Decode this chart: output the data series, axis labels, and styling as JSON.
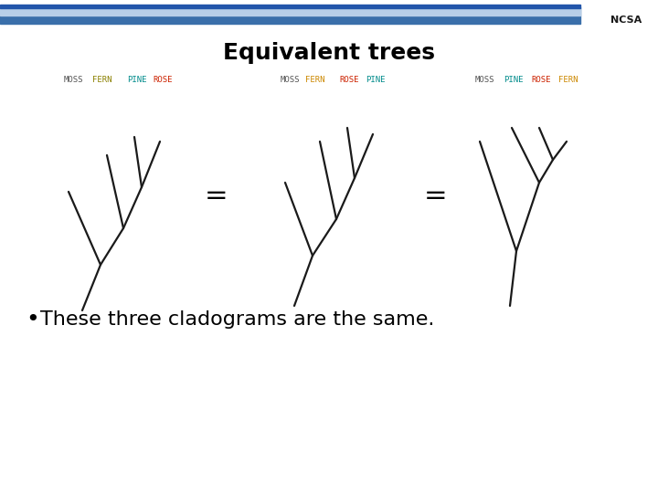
{
  "title": "Equivalent trees",
  "title_fontsize": 18,
  "title_fontweight": "bold",
  "background_color": "#ffffff",
  "bullet_text": "These three cladograms are the same.",
  "bullet_fontsize": 16,
  "header_bar_color_dark": "#3a6faa",
  "header_bar_color_light": "#b8cfe8",
  "tree1_labels": [
    "MOSS",
    "FERN",
    "PINE",
    "ROSE"
  ],
  "tree1_colors": [
    "#555555",
    "#8b8000",
    "#008b8b",
    "#cc2200"
  ],
  "tree2_labels": [
    "MOSS",
    "FERN",
    "ROSE",
    "PINE"
  ],
  "tree2_colors": [
    "#555555",
    "#cc8800",
    "#cc2200",
    "#008b8b"
  ],
  "tree3_labels": [
    "MOSS",
    "PINE",
    "ROSE",
    "FERN"
  ],
  "tree3_colors": [
    "#555555",
    "#008b8b",
    "#cc2200",
    "#cc8800"
  ],
  "line_color": "#1a1a1a",
  "line_width": 1.6,
  "label_fontsize": 6.5
}
